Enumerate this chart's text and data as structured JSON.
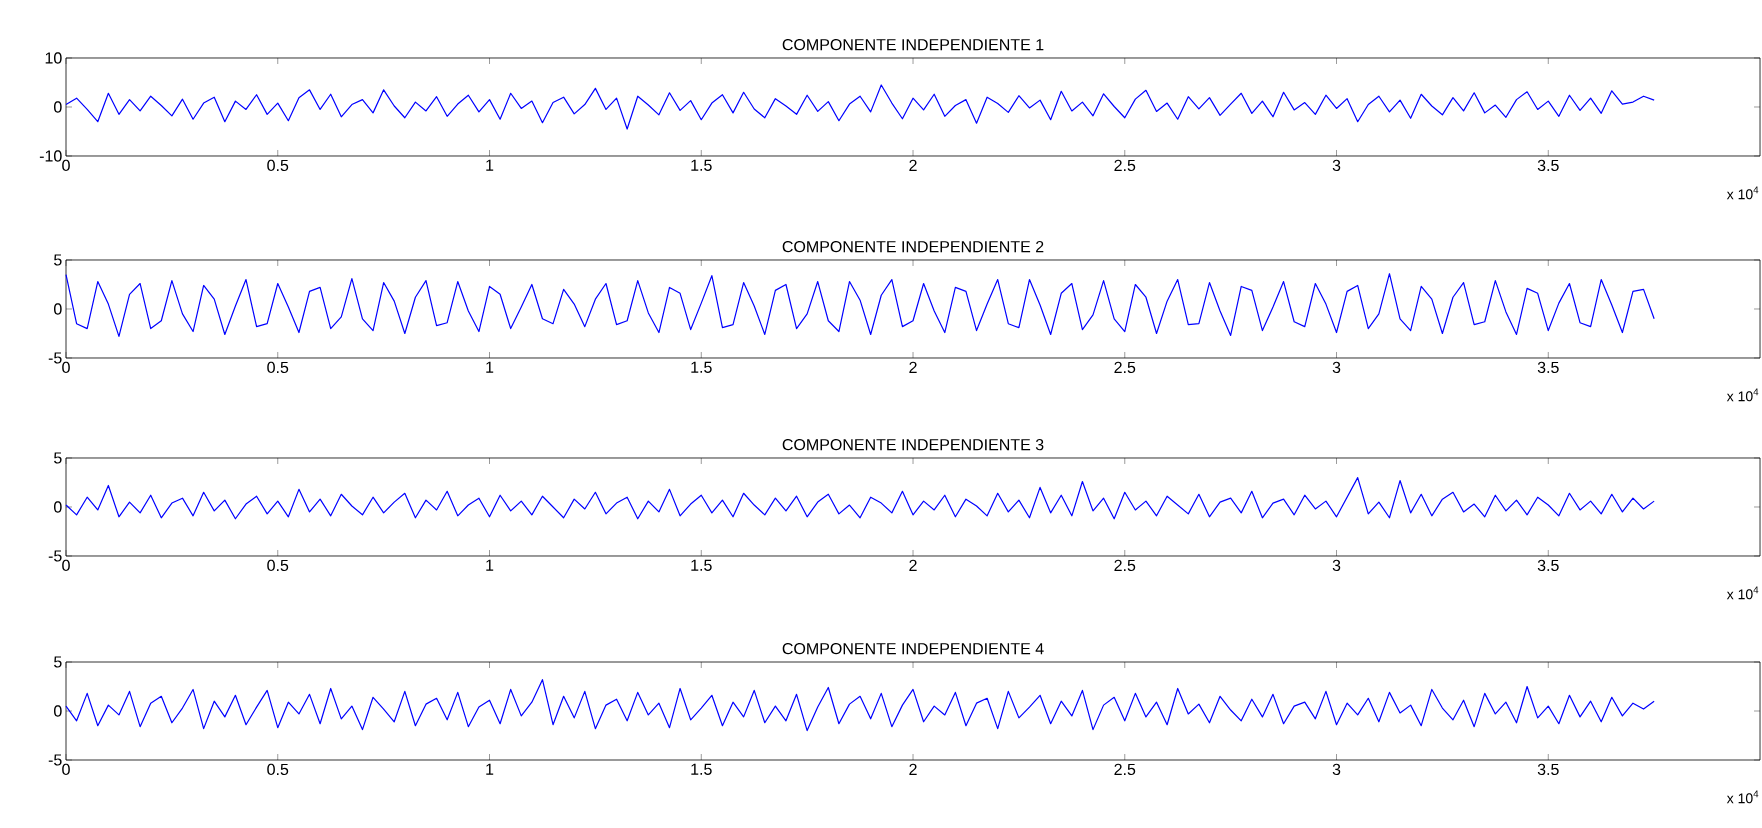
{
  "chart_data": [
    {
      "type": "line",
      "title": "COMPONENTE INDEPENDIENTE 1",
      "color": "#0000ff",
      "xlim": [
        0,
        4
      ],
      "ylim": [
        -10,
        10
      ],
      "xticks": [
        0,
        0.5,
        1,
        1.5,
        2,
        2.5,
        3,
        3.5
      ],
      "yticks": [
        -10,
        0,
        10
      ],
      "annotations": [
        "x 10$^{4}$"
      ],
      "x": [
        0,
        0.025,
        0.05,
        0.075,
        0.1,
        0.125,
        0.15,
        0.175,
        0.2,
        0.225,
        0.25,
        0.275,
        0.3,
        0.325,
        0.35,
        0.375,
        0.4,
        0.425,
        0.45,
        0.475,
        0.5,
        0.525,
        0.55,
        0.575,
        0.6,
        0.625,
        0.65,
        0.675,
        0.7,
        0.725,
        0.75,
        0.775,
        0.8,
        0.825,
        0.85,
        0.875,
        0.9,
        0.925,
        0.95,
        0.975,
        1,
        1.025,
        1.05,
        1.075,
        1.1,
        1.125,
        1.15,
        1.175,
        1.2,
        1.225,
        1.25,
        1.275,
        1.3,
        1.325,
        1.35,
        1.375,
        1.4,
        1.425,
        1.45,
        1.475,
        1.5,
        1.525,
        1.55,
        1.575,
        1.6,
        1.625,
        1.65,
        1.675,
        1.7,
        1.725,
        1.75,
        1.775,
        1.8,
        1.825,
        1.85,
        1.875,
        1.9,
        1.925,
        1.95,
        1.975,
        2,
        2.025,
        2.05,
        2.075,
        2.1,
        2.125,
        2.15,
        2.175,
        2.2,
        2.225,
        2.25,
        2.275,
        2.3,
        2.325,
        2.35,
        2.375,
        2.4,
        2.425,
        2.45,
        2.475,
        2.5,
        2.525,
        2.55,
        2.575,
        2.6,
        2.625,
        2.65,
        2.675,
        2.7,
        2.725,
        2.75,
        2.775,
        2.8,
        2.825,
        2.85,
        2.875,
        2.9,
        2.925,
        2.95,
        2.975,
        3,
        3.025,
        3.05,
        3.075,
        3.1,
        3.125,
        3.15,
        3.175,
        3.2,
        3.225,
        3.25,
        3.275,
        3.3,
        3.325,
        3.35,
        3.375,
        3.4,
        3.425,
        3.45,
        3.475,
        3.5,
        3.525,
        3.55,
        3.575,
        3.6,
        3.625,
        3.65,
        3.675,
        3.7,
        3.725,
        3.75
      ],
      "values": [
        0.5,
        1.8,
        -0.5,
        -3.0,
        2.8,
        -1.5,
        1.5,
        -0.8,
        2.2,
        0.3,
        -1.8,
        1.6,
        -2.5,
        0.8,
        2.0,
        -3.0,
        1.2,
        -0.5,
        2.5,
        -1.5,
        0.8,
        -2.8,
        1.9,
        3.5,
        -0.5,
        2.6,
        -2.0,
        0.5,
        1.5,
        -1.2,
        3.5,
        0.2,
        -2.2,
        1.0,
        -0.8,
        2.1,
        -1.9,
        0.6,
        2.4,
        -1.0,
        1.5,
        -2.5,
        2.8,
        -0.3,
        1.2,
        -3.2,
        0.9,
        2.0,
        -1.4,
        0.5,
        3.8,
        -0.5,
        1.8,
        -4.5,
        2.2,
        0.4,
        -1.6,
        2.9,
        -0.7,
        1.3,
        -2.6,
        0.8,
        2.5,
        -1.2,
        3.0,
        -0.4,
        -2.2,
        1.7,
        0.2,
        -1.5,
        2.4,
        -0.9,
        1.1,
        -2.8,
        0.6,
        2.2,
        -1.0,
        4.5,
        0.8,
        -2.4,
        1.8,
        -0.6,
        2.6,
        -1.9,
        0.3,
        1.5,
        -3.3,
        2.0,
        0.7,
        -1.1,
        2.3,
        -0.2,
        1.4,
        -2.6,
        3.2,
        -0.8,
        1.0,
        -1.8,
        2.7,
        0.1,
        -2.2,
        1.6,
        3.4,
        -0.9,
        0.8,
        -2.5,
        2.1,
        -0.4,
        1.9,
        -1.7,
        0.6,
        2.8,
        -1.3,
        1.2,
        -2.0,
        3.0,
        -0.6,
        0.9,
        -1.5,
        2.4,
        -0.3,
        1.7,
        -3.0,
        0.5,
        2.2,
        -1.0,
        1.4,
        -2.3,
        2.6,
        0.2,
        -1.6,
        1.9,
        -0.8,
        2.9,
        -1.2,
        0.4,
        -2.1,
        1.5,
        3.1,
        -0.5,
        1.2,
        -1.9,
        2.4,
        -0.7,
        1.8,
        -1.3,
        3.3,
        0.6,
        1.0,
        2.2,
        1.4
      ]
    },
    {
      "type": "line",
      "title": "COMPONENTE INDEPENDIENTE 2",
      "color": "#0000ff",
      "xlim": [
        0,
        4
      ],
      "ylim": [
        -5,
        5
      ],
      "xticks": [
        0,
        0.5,
        1,
        1.5,
        2,
        2.5,
        3,
        3.5
      ],
      "yticks": [
        -5,
        0,
        5
      ],
      "annotations": [
        "x 10$^{4}$"
      ],
      "x": [
        0,
        0.025,
        0.05,
        0.075,
        0.1,
        0.125,
        0.15,
        0.175,
        0.2,
        0.225,
        0.25,
        0.275,
        0.3,
        0.325,
        0.35,
        0.375,
        0.4,
        0.425,
        0.45,
        0.475,
        0.5,
        0.525,
        0.55,
        0.575,
        0.6,
        0.625,
        0.65,
        0.675,
        0.7,
        0.725,
        0.75,
        0.775,
        0.8,
        0.825,
        0.85,
        0.875,
        0.9,
        0.925,
        0.95,
        0.975,
        1,
        1.025,
        1.05,
        1.075,
        1.1,
        1.125,
        1.15,
        1.175,
        1.2,
        1.225,
        1.25,
        1.275,
        1.3,
        1.325,
        1.35,
        1.375,
        1.4,
        1.425,
        1.45,
        1.475,
        1.5,
        1.525,
        1.55,
        1.575,
        1.6,
        1.625,
        1.65,
        1.675,
        1.7,
        1.725,
        1.75,
        1.775,
        1.8,
        1.825,
        1.85,
        1.875,
        1.9,
        1.925,
        1.95,
        1.975,
        2,
        2.025,
        2.05,
        2.075,
        2.1,
        2.125,
        2.15,
        2.175,
        2.2,
        2.225,
        2.25,
        2.275,
        2.3,
        2.325,
        2.35,
        2.375,
        2.4,
        2.425,
        2.45,
        2.475,
        2.5,
        2.525,
        2.55,
        2.575,
        2.6,
        2.625,
        2.65,
        2.675,
        2.7,
        2.725,
        2.75,
        2.775,
        2.8,
        2.825,
        2.85,
        2.875,
        2.9,
        2.925,
        2.95,
        2.975,
        3,
        3.025,
        3.05,
        3.075,
        3.1,
        3.125,
        3.15,
        3.175,
        3.2,
        3.225,
        3.25,
        3.275,
        3.3,
        3.325,
        3.35,
        3.375,
        3.4,
        3.425,
        3.45,
        3.475,
        3.5,
        3.525,
        3.55,
        3.575,
        3.6,
        3.625,
        3.65,
        3.675,
        3.7,
        3.725,
        3.75
      ],
      "values": [
        3.5,
        -1.5,
        -2.0,
        2.8,
        0.5,
        -2.8,
        1.5,
        2.6,
        -2.0,
        -1.2,
        2.9,
        -0.5,
        -2.3,
        2.4,
        1.0,
        -2.6,
        0.3,
        3.0,
        -1.8,
        -1.5,
        2.6,
        0.2,
        -2.4,
        1.8,
        2.2,
        -2.0,
        -0.8,
        3.1,
        -1.0,
        -2.2,
        2.7,
        0.8,
        -2.5,
        1.2,
        2.9,
        -1.7,
        -1.4,
        2.8,
        -0.2,
        -2.3,
        2.3,
        1.5,
        -2.0,
        0.2,
        2.5,
        -1.0,
        -1.5,
        2.0,
        0.5,
        -1.8,
        1.0,
        2.6,
        -1.6,
        -1.2,
        2.9,
        -0.4,
        -2.4,
        2.2,
        1.6,
        -2.1,
        0.6,
        3.4,
        -1.9,
        -1.6,
        2.7,
        0.3,
        -2.6,
        1.9,
        2.5,
        -2.0,
        -0.5,
        2.8,
        -1.2,
        -2.3,
        2.8,
        0.9,
        -2.6,
        1.4,
        3.0,
        -1.8,
        -1.2,
        2.6,
        -0.2,
        -2.4,
        2.2,
        1.8,
        -2.2,
        0.5,
        3.0,
        -1.5,
        -1.9,
        3.0,
        0.4,
        -2.6,
        1.6,
        2.6,
        -2.1,
        -0.6,
        2.9,
        -1.0,
        -2.3,
        2.5,
        1.2,
        -2.5,
        0.8,
        3.0,
        -1.6,
        -1.5,
        2.7,
        -0.2,
        -2.7,
        2.3,
        1.9,
        -2.2,
        0.2,
        2.8,
        -1.3,
        -1.8,
        2.6,
        0.5,
        -2.4,
        1.8,
        2.4,
        -2.0,
        -0.5,
        3.6,
        -1.0,
        -2.2,
        2.3,
        1.0,
        -2.5,
        1.2,
        2.7,
        -1.6,
        -1.3,
        2.9,
        -0.3,
        -2.6,
        2.1,
        1.6,
        -2.2,
        0.6,
        2.6,
        -1.4,
        -1.8,
        3.0,
        0.4,
        -2.4,
        1.8,
        2.0,
        -1.0
      ]
    },
    {
      "type": "line",
      "title": "COMPONENTE INDEPENDIENTE 3",
      "color": "#0000ff",
      "xlim": [
        0,
        4
      ],
      "ylim": [
        -5,
        5
      ],
      "xticks": [
        0,
        0.5,
        1,
        1.5,
        2,
        2.5,
        3,
        3.5
      ],
      "yticks": [
        -5,
        0,
        5
      ],
      "annotations": [
        "x 10$^{4}$"
      ],
      "x": [
        0,
        0.025,
        0.05,
        0.075,
        0.1,
        0.125,
        0.15,
        0.175,
        0.2,
        0.225,
        0.25,
        0.275,
        0.3,
        0.325,
        0.35,
        0.375,
        0.4,
        0.425,
        0.45,
        0.475,
        0.5,
        0.525,
        0.55,
        0.575,
        0.6,
        0.625,
        0.65,
        0.675,
        0.7,
        0.725,
        0.75,
        0.775,
        0.8,
        0.825,
        0.85,
        0.875,
        0.9,
        0.925,
        0.95,
        0.975,
        1,
        1.025,
        1.05,
        1.075,
        1.1,
        1.125,
        1.15,
        1.175,
        1.2,
        1.225,
        1.25,
        1.275,
        1.3,
        1.325,
        1.35,
        1.375,
        1.4,
        1.425,
        1.45,
        1.475,
        1.5,
        1.525,
        1.55,
        1.575,
        1.6,
        1.625,
        1.65,
        1.675,
        1.7,
        1.725,
        1.75,
        1.775,
        1.8,
        1.825,
        1.85,
        1.875,
        1.9,
        1.925,
        1.95,
        1.975,
        2,
        2.025,
        2.05,
        2.075,
        2.1,
        2.125,
        2.15,
        2.175,
        2.2,
        2.225,
        2.25,
        2.275,
        2.3,
        2.325,
        2.35,
        2.375,
        2.4,
        2.425,
        2.45,
        2.475,
        2.5,
        2.525,
        2.55,
        2.575,
        2.6,
        2.625,
        2.65,
        2.675,
        2.7,
        2.725,
        2.75,
        2.775,
        2.8,
        2.825,
        2.85,
        2.875,
        2.9,
        2.925,
        2.95,
        2.975,
        3,
        3.025,
        3.05,
        3.075,
        3.1,
        3.125,
        3.15,
        3.175,
        3.2,
        3.225,
        3.25,
        3.275,
        3.3,
        3.325,
        3.35,
        3.375,
        3.4,
        3.425,
        3.45,
        3.475,
        3.5,
        3.525,
        3.55,
        3.575,
        3.6,
        3.625,
        3.65,
        3.675,
        3.7,
        3.725,
        3.75
      ],
      "values": [
        0.2,
        -0.8,
        1.0,
        -0.3,
        2.2,
        -1.0,
        0.5,
        -0.6,
        1.2,
        -1.1,
        0.4,
        0.9,
        -0.9,
        1.5,
        -0.4,
        0.7,
        -1.2,
        0.3,
        1.1,
        -0.7,
        0.6,
        -1.0,
        1.8,
        -0.5,
        0.8,
        -0.9,
        1.3,
        0.1,
        -0.8,
        1.0,
        -0.6,
        0.5,
        1.4,
        -1.1,
        0.7,
        -0.3,
        1.6,
        -0.9,
        0.2,
        0.9,
        -1.0,
        1.2,
        -0.4,
        0.6,
        -0.8,
        1.1,
        0.0,
        -1.1,
        0.8,
        -0.2,
        1.5,
        -0.7,
        0.4,
        1.0,
        -1.2,
        0.6,
        -0.5,
        1.8,
        -0.9,
        0.3,
        1.2,
        -0.6,
        0.7,
        -1.0,
        1.4,
        0.2,
        -0.8,
        0.9,
        -0.4,
        1.1,
        -1.0,
        0.5,
        1.3,
        -0.7,
        0.2,
        -1.1,
        1.0,
        0.4,
        -0.6,
        1.6,
        -0.8,
        0.6,
        -0.3,
        1.2,
        -1.0,
        0.8,
        0.1,
        -0.9,
        1.4,
        -0.5,
        0.7,
        -1.1,
        2.0,
        -0.6,
        1.2,
        -0.9,
        2.6,
        -0.4,
        0.9,
        -1.2,
        1.5,
        -0.3,
        0.6,
        -0.9,
        1.1,
        0.2,
        -0.7,
        1.3,
        -1.0,
        0.5,
        0.9,
        -0.6,
        1.6,
        -1.1,
        0.4,
        0.8,
        -0.8,
        1.2,
        -0.2,
        0.6,
        -1.0,
        1.0,
        3.0,
        -0.7,
        0.5,
        -1.1,
        2.7,
        -0.6,
        1.3,
        -0.9,
        0.8,
        1.5,
        -0.5,
        0.3,
        -1.0,
        1.2,
        -0.4,
        0.7,
        -0.8,
        1.0,
        0.2,
        -0.9,
        1.4,
        -0.3,
        0.6,
        -0.7,
        1.3,
        -0.5,
        0.9,
        -0.2,
        0.6
      ]
    },
    {
      "type": "line",
      "title": "COMPONENTE INDEPENDIENTE 4",
      "color": "#0000ff",
      "xlim": [
        0,
        4
      ],
      "ylim": [
        -5,
        5
      ],
      "xticks": [
        0,
        0.5,
        1,
        1.5,
        2,
        2.5,
        3,
        3.5
      ],
      "yticks": [
        -5,
        0,
        5
      ],
      "annotations": [
        "x 10$^{4}$"
      ],
      "x": [
        0,
        0.025,
        0.05,
        0.075,
        0.1,
        0.125,
        0.15,
        0.175,
        0.2,
        0.225,
        0.25,
        0.275,
        0.3,
        0.325,
        0.35,
        0.375,
        0.4,
        0.425,
        0.45,
        0.475,
        0.5,
        0.525,
        0.55,
        0.575,
        0.6,
        0.625,
        0.65,
        0.675,
        0.7,
        0.725,
        0.75,
        0.775,
        0.8,
        0.825,
        0.85,
        0.875,
        0.9,
        0.925,
        0.95,
        0.975,
        1,
        1.025,
        1.05,
        1.075,
        1.1,
        1.125,
        1.15,
        1.175,
        1.2,
        1.225,
        1.25,
        1.275,
        1.3,
        1.325,
        1.35,
        1.375,
        1.4,
        1.425,
        1.45,
        1.475,
        1.5,
        1.525,
        1.55,
        1.575,
        1.6,
        1.625,
        1.65,
        1.675,
        1.7,
        1.725,
        1.75,
        1.775,
        1.8,
        1.825,
        1.85,
        1.875,
        1.9,
        1.925,
        1.95,
        1.975,
        2,
        2.025,
        2.05,
        2.075,
        2.1,
        2.125,
        2.15,
        2.175,
        2.2,
        2.225,
        2.25,
        2.275,
        2.3,
        2.325,
        2.35,
        2.375,
        2.4,
        2.425,
        2.45,
        2.475,
        2.5,
        2.525,
        2.55,
        2.575,
        2.6,
        2.625,
        2.65,
        2.675,
        2.7,
        2.725,
        2.75,
        2.775,
        2.8,
        2.825,
        2.85,
        2.875,
        2.9,
        2.925,
        2.95,
        2.975,
        3,
        3.025,
        3.05,
        3.075,
        3.1,
        3.125,
        3.15,
        3.175,
        3.2,
        3.225,
        3.25,
        3.275,
        3.3,
        3.325,
        3.35,
        3.375,
        3.4,
        3.425,
        3.45,
        3.475,
        3.5,
        3.525,
        3.55,
        3.575,
        3.6,
        3.625,
        3.65,
        3.675,
        3.7,
        3.725,
        3.75
      ],
      "values": [
        0.5,
        -1.0,
        1.8,
        -1.5,
        0.6,
        -0.4,
        2.0,
        -1.6,
        0.8,
        1.5,
        -1.2,
        0.3,
        2.2,
        -1.8,
        1.0,
        -0.6,
        1.6,
        -1.4,
        0.4,
        2.1,
        -1.7,
        0.9,
        -0.3,
        1.7,
        -1.3,
        2.3,
        -0.8,
        0.5,
        -1.9,
        1.4,
        0.2,
        -1.1,
        2.0,
        -1.5,
        0.7,
        1.3,
        -0.9,
        1.9,
        -1.6,
        0.4,
        1.1,
        -1.3,
        2.2,
        -0.5,
        0.9,
        3.2,
        -1.4,
        1.5,
        -0.7,
        2.0,
        -1.8,
        0.6,
        1.2,
        -1.0,
        1.9,
        -0.4,
        0.8,
        -1.7,
        2.3,
        -0.9,
        0.3,
        1.6,
        -1.5,
        0.9,
        -0.6,
        2.1,
        -1.2,
        0.5,
        -1.0,
        1.7,
        -2.0,
        0.4,
        2.4,
        -1.3,
        0.7,
        1.5,
        -0.8,
        1.8,
        -1.6,
        0.6,
        2.2,
        -1.1,
        0.5,
        -0.4,
        1.9,
        -1.5,
        0.8,
        1.3,
        -1.8,
        2.0,
        -0.7,
        0.4,
        1.6,
        -1.3,
        1.0,
        -0.5,
        2.1,
        -1.9,
        0.6,
        1.4,
        -1.0,
        1.8,
        -0.6,
        0.9,
        -1.4,
        2.3,
        -0.3,
        0.7,
        -1.2,
        1.5,
        0.1,
        -1.0,
        1.2,
        -0.6,
        1.7,
        -1.3,
        0.5,
        0.9,
        -0.8,
        2.0,
        -1.4,
        0.8,
        -0.4,
        1.3,
        -1.1,
        1.9,
        -0.2,
        0.6,
        -1.5,
        2.2,
        0.3,
        -0.9,
        1.1,
        -1.6,
        1.8,
        -0.3,
        0.9,
        -1.2,
        2.5,
        -0.7,
        0.5,
        -1.3,
        1.6,
        -0.6,
        1.0,
        -1.1,
        1.4,
        -0.5,
        0.8,
        0.2,
        1.0
      ]
    }
  ]
}
